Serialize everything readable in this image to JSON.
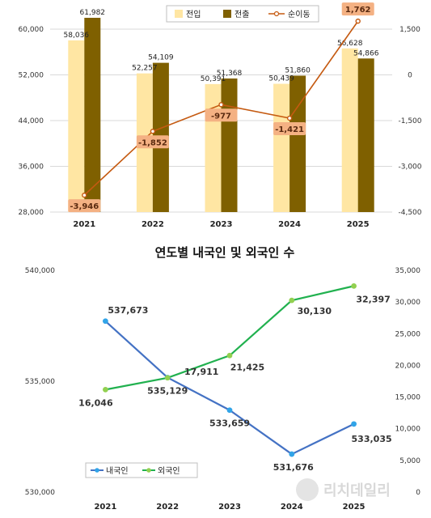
{
  "chart_data": [
    {
      "type": "bar",
      "categories": [
        "2021",
        "2022",
        "2023",
        "2024",
        "2025"
      ],
      "series": [
        {
          "name": "전입",
          "values": [
            58036,
            52257,
            50391,
            50439,
            56628
          ],
          "color": "#ffe6a3"
        },
        {
          "name": "전출",
          "values": [
            61982,
            54109,
            51368,
            51860,
            54866
          ],
          "color": "#7f6000"
        }
      ],
      "line_series": {
        "name": "순이동",
        "values": [
          -3946,
          -1852,
          -977,
          -1421,
          1762
        ],
        "color": "#c55a11",
        "axis": "right"
      },
      "ylim": [
        28000,
        60000
      ],
      "yticks": [
        "28,000",
        "36,000",
        "44,000",
        "52,000",
        "60,000"
      ],
      "y2lim": [
        -4500,
        1500
      ],
      "y2ticks": [
        "-4,500",
        "-3,000",
        "-1,500",
        "0",
        "1,500"
      ],
      "bar_labels_1": [
        "58,036",
        "52,257",
        "50,391",
        "50,439",
        "56,628"
      ],
      "bar_labels_2": [
        "61,982",
        "54,109",
        "51,368",
        "51,860",
        "54,866"
      ],
      "line_labels": [
        "-3,946",
        "-1,852",
        "-977",
        "-1,421",
        "1,762"
      ],
      "legend": "top-center",
      "grid": true
    },
    {
      "type": "line",
      "title": "연도별 내국인 및 외국인 수",
      "categories": [
        "2021",
        "2022",
        "2023",
        "2024",
        "2025"
      ],
      "series": [
        {
          "name": "내국인",
          "values": [
            537673,
            535129,
            533659,
            531676,
            533035
          ],
          "color": "#4472c4",
          "axis": "left"
        },
        {
          "name": "외국인",
          "values": [
            16046,
            17911,
            21425,
            30130,
            32397
          ],
          "color": "#21b14f",
          "axis": "right"
        }
      ],
      "labels_1": [
        "537,673",
        "535,129",
        "533,659",
        "531,676",
        "533,035"
      ],
      "labels_2": [
        "16,046",
        "17,911",
        "21,425",
        "30,130",
        "32,397"
      ],
      "ylim": [
        530000,
        540000
      ],
      "yticks": [
        "530,000",
        "535,000",
        "540,000"
      ],
      "y2lim": [
        0,
        35000
      ],
      "y2ticks": [
        "0",
        "5,000",
        "10,000",
        "15,000",
        "20,000",
        "25,000",
        "30,000",
        "35,000"
      ],
      "legend": "bottom-left",
      "grid": false
    }
  ],
  "watermark": "리치데일리"
}
